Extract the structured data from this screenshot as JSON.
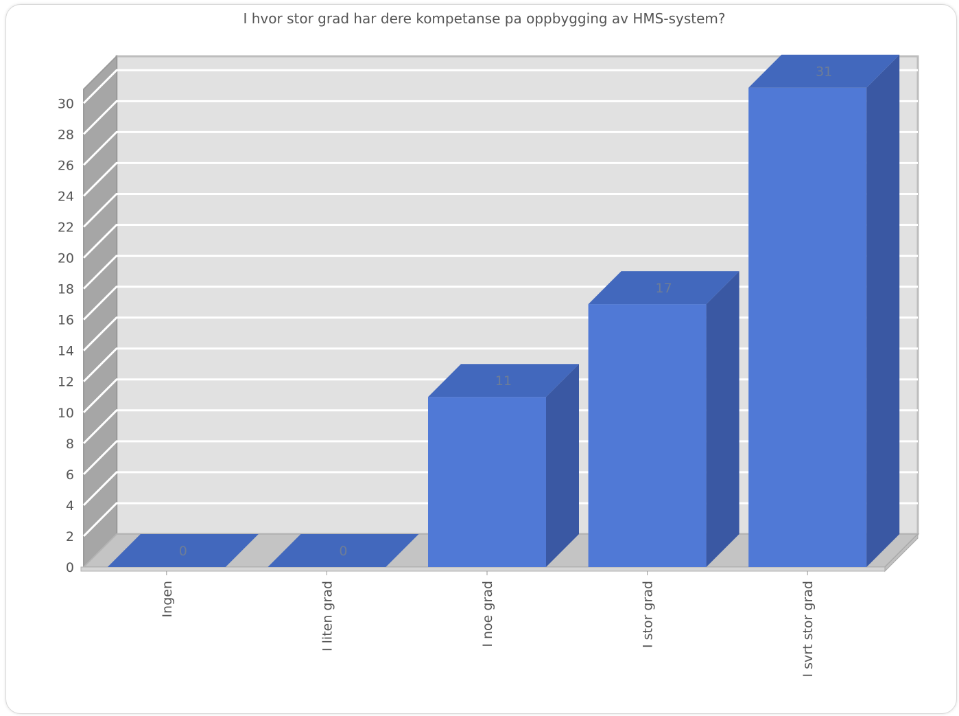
{
  "chart_data": {
    "type": "bar",
    "title": "I hvor stor grad har dere kompetanse pa oppbygging av HMS-system?",
    "categories": [
      "Ingen",
      "I liten grad",
      "I noe grad",
      "I stor grad",
      "I svrt stor grad"
    ],
    "values": [
      0,
      0,
      11,
      17,
      31
    ],
    "value_labels": [
      "0",
      "0",
      "11",
      "17",
      "31"
    ],
    "ylim": [
      0,
      30.9
    ],
    "yticks": [
      0,
      2,
      4,
      6,
      8,
      10,
      12,
      14,
      16,
      18,
      20,
      22,
      24,
      26,
      28,
      30
    ],
    "grid": true,
    "style": "3d",
    "colors": {
      "bar_front": "#5079d6",
      "bar_top": "#4268bd",
      "bar_side": "#3a58a3",
      "wall": "#e1e1e1",
      "wall_left": "#a6a6a6",
      "floor": "#c4c4c4",
      "gridline": "#ffffff",
      "axis_text": "#555555",
      "value_text": "#6e7d96"
    }
  }
}
